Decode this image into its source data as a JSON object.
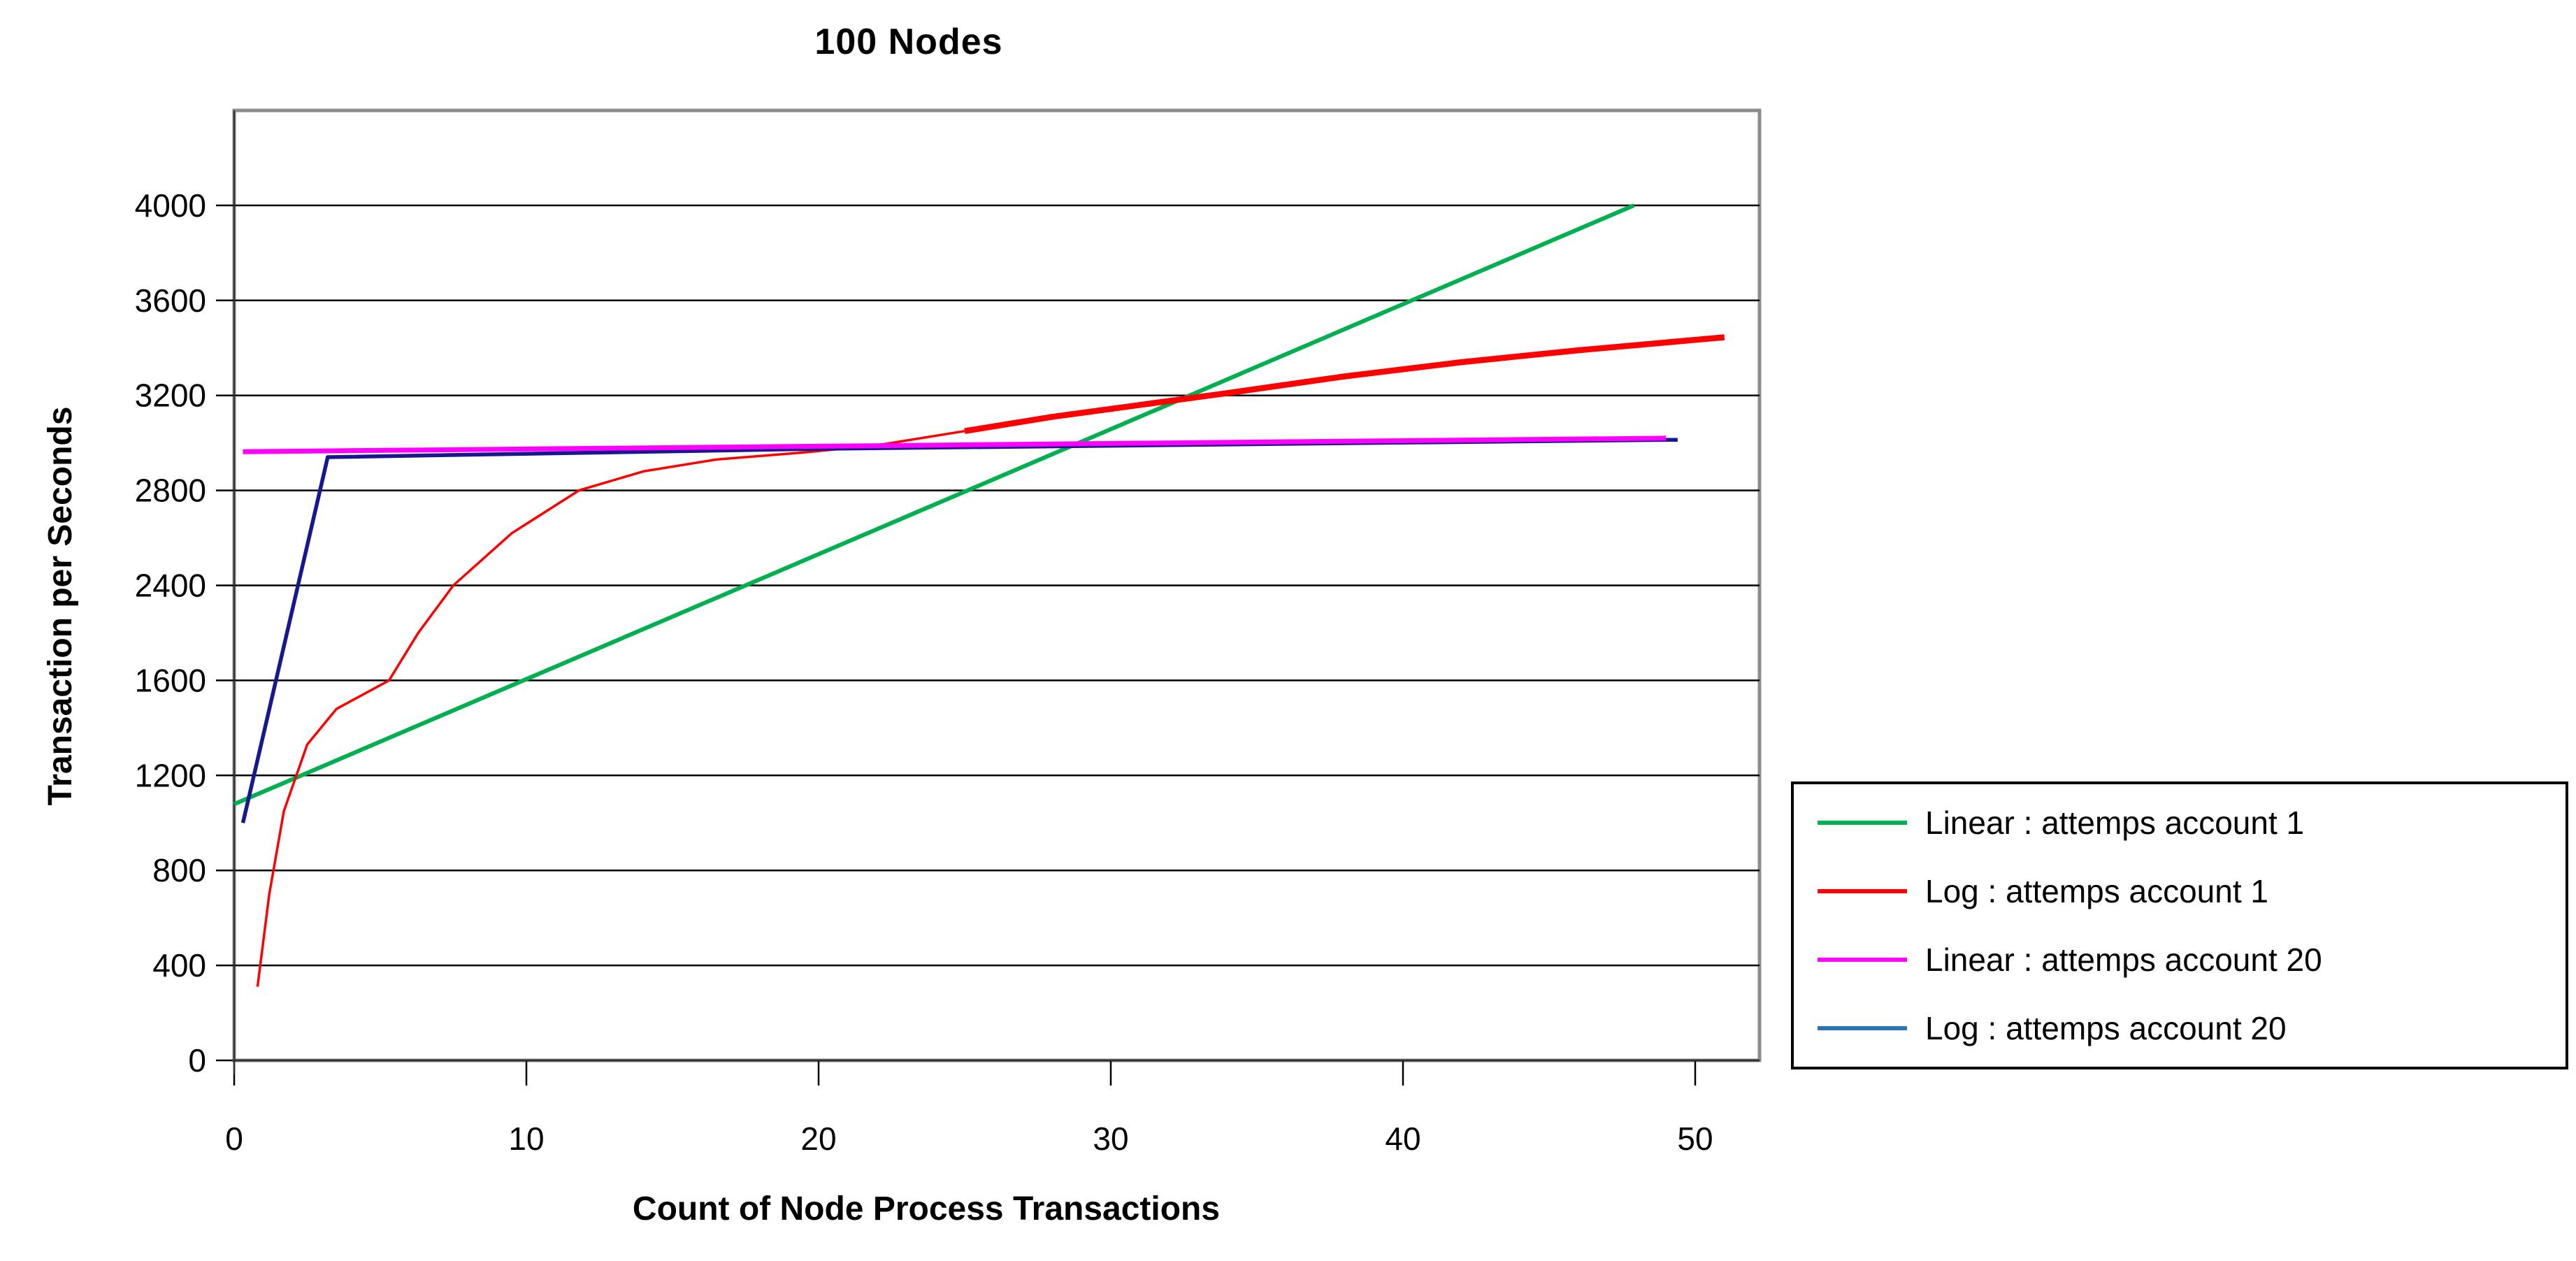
{
  "title": "100 Nodes",
  "axes": {
    "y_title": "Transaction per Seconds",
    "x_title": "Count of Node Process Transactions"
  },
  "legend": {
    "items": [
      {
        "label": "Linear : attemps account 1",
        "color": "#00B050"
      },
      {
        "label": "Log : attemps account 1",
        "color": "#FF0000"
      },
      {
        "label": "Linear : attemps account 20",
        "color": "#FF00FF"
      },
      {
        "label": "Log : attemps account 20",
        "color": "#2E75B6"
      }
    ]
  },
  "chart_data": {
    "type": "line",
    "title": "100 Nodes",
    "xlabel": "Count of Node Process Transactions",
    "ylabel": "Transaction per Seconds",
    "x_ticks": [
      0,
      10,
      20,
      30,
      40,
      50
    ],
    "xlim": [
      0,
      52.2
    ],
    "y_tick_labels": [
      0,
      400,
      800,
      1200,
      1600,
      2400,
      2800,
      3200,
      3600,
      4000
    ],
    "y_axis_note": "ten equally spaced gridlines; the 2000 label is skipped between 1600 and 2400",
    "grid": "horizontal-only",
    "legend_position": "right-outside",
    "plot_border_color": "#8C8C8C",
    "gridline_color": "#000000",
    "series": [
      {
        "name": "Linear : attemps account 1",
        "color": "#00B050",
        "line_width": 6,
        "points": [
          [
            0,
            1079
          ],
          [
            9.9,
            1600
          ],
          [
            13.7,
            2000
          ],
          [
            17.5,
            2400
          ],
          [
            25.1,
            2800
          ],
          [
            32.7,
            3200
          ],
          [
            40.3,
            3600
          ],
          [
            47.9,
            4000
          ]
        ]
      },
      {
        "name": "Log : attemps account 1",
        "color": "#FF0000",
        "line_width": 3.5,
        "width_change": {
          "at_x": 25,
          "width": 8.5
        },
        "points": [
          [
            0.8,
            310
          ],
          [
            1.2,
            700
          ],
          [
            1.7,
            1050
          ],
          [
            2.5,
            1330
          ],
          [
            3.5,
            1480
          ],
          [
            5.3,
            1600
          ],
          [
            6.3,
            2000
          ],
          [
            7.5,
            2400
          ],
          [
            9.5,
            2620
          ],
          [
            11.8,
            2800
          ],
          [
            14,
            2880
          ],
          [
            16.5,
            2930
          ],
          [
            19.5,
            2960
          ],
          [
            22,
            2990
          ],
          [
            25,
            3050
          ],
          [
            28,
            3110
          ],
          [
            31,
            3160
          ],
          [
            34,
            3210
          ],
          [
            38,
            3280
          ],
          [
            42,
            3340
          ],
          [
            46,
            3390
          ],
          [
            51,
            3445
          ]
        ]
      },
      {
        "name": "Log : attemps account 20",
        "color": "#17178F",
        "line_width": 5.5,
        "points": [
          [
            0.3,
            1000
          ],
          [
            3.2,
            2940
          ],
          [
            20,
            2975
          ],
          [
            49,
            3013
          ],
          [
            49.4,
            3013
          ]
        ]
      },
      {
        "name": "Linear : attemps account 20",
        "color": "#FF00FF",
        "line_width": 7,
        "points": [
          [
            0.3,
            2963
          ],
          [
            49,
            3020
          ]
        ]
      }
    ]
  }
}
